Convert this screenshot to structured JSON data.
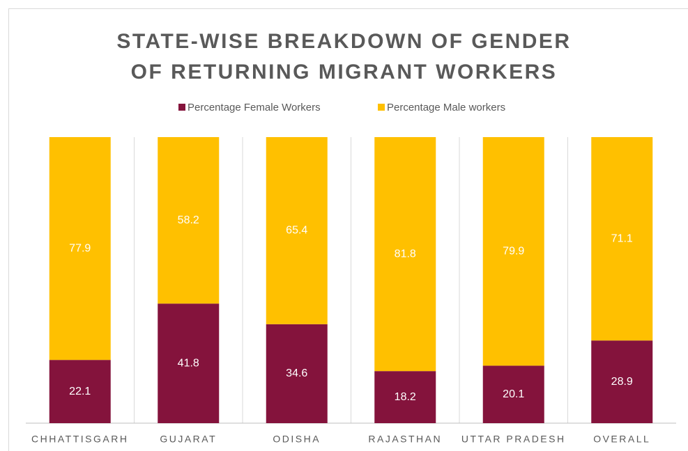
{
  "chart_data": {
    "type": "stacked_bar",
    "title": "STATE-WISE BREAKDOWN OF GENDER OF RETURNING MIGRANT WORKERS",
    "categories": [
      "CHHATTISGARH",
      "GUJARAT",
      "ODISHA",
      "RAJASTHAN",
      "UTTAR PRADESH",
      "OVERALL"
    ],
    "series": [
      {
        "name": "Percentage Female Workers",
        "color": "#84133c",
        "values": [
          22.1,
          41.8,
          34.6,
          18.2,
          20.1,
          28.9
        ]
      },
      {
        "name": "Percentage Male workers",
        "color": "#ffc000",
        "values": [
          77.9,
          58.2,
          65.4,
          81.8,
          79.9,
          71.1
        ]
      }
    ],
    "ylim": [
      0,
      100
    ],
    "legend": "top"
  }
}
